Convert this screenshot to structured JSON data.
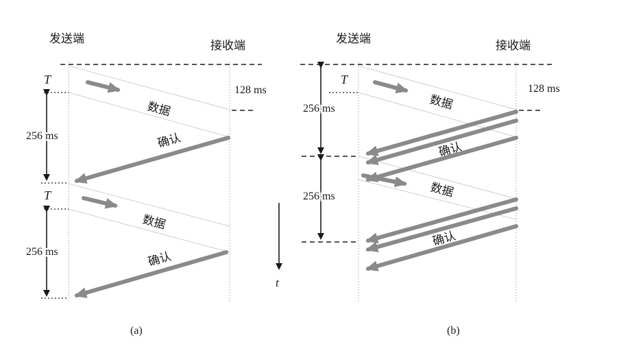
{
  "panel_a": {
    "sender": "发送端",
    "receiver": "接收端",
    "caption": "(a)",
    "T1": "T",
    "T2": "T",
    "delay_128": "128 ms",
    "interval1": "256 ms",
    "interval2": "256 ms",
    "data1": "数据",
    "ack1": "确认",
    "data2": "数据",
    "ack2": "确认",
    "time_axis": "t"
  },
  "panel_b": {
    "sender": "发送端",
    "receiver": "接收端",
    "caption": "(b)",
    "T1": "T",
    "delay_128": "128 ms",
    "interval1": "256 ms",
    "interval2": "256 ms",
    "data1": "数据",
    "ack1": "确认",
    "data2": "数据",
    "ack2": "确认"
  },
  "colors": {
    "arrow": "#8a8a8a",
    "line": "#1a1a1a",
    "faint": "#cfcfcf"
  }
}
